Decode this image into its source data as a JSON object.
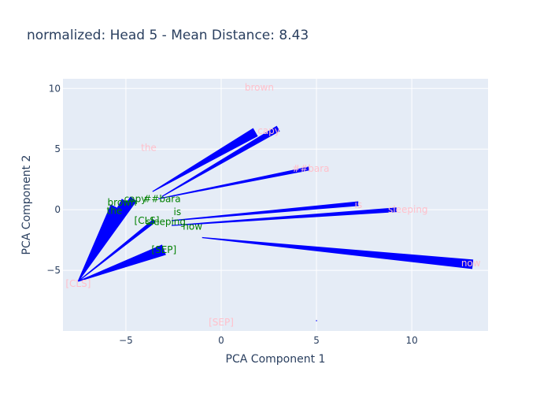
{
  "chart_data": {
    "type": "scatter",
    "title": "normalized: Head 5 - Mean Distance: 8.43",
    "xlabel": "PCA Component 1",
    "ylabel": "PCA Component 2",
    "xlim": [
      -8.3,
      14.0
    ],
    "ylim": [
      -10.0,
      10.8
    ],
    "xticks": [
      -5,
      0,
      5,
      10
    ],
    "yticks": [
      -5,
      0,
      5,
      10
    ],
    "grid": true,
    "colors": {
      "plot_bg": "#e5ecf6",
      "grid": "#ffffff",
      "arrow": "#0000ff",
      "label_a": "#ffc0cb",
      "label_b": "#008000"
    },
    "series": [
      {
        "color": "#ffc0cb",
        "points": [
          {
            "label": "[CLS]",
            "x": -7.5,
            "y": -6.1
          },
          {
            "label": "the",
            "x": -3.8,
            "y": 5.1
          },
          {
            "label": "brown",
            "x": 2.0,
            "y": 10.1
          },
          {
            "label": "capy",
            "x": 2.5,
            "y": 6.5
          },
          {
            "label": "##bara",
            "x": 4.7,
            "y": 3.4
          },
          {
            "label": "is",
            "x": 7.2,
            "y": 0.4
          },
          {
            "label": "sleeping",
            "x": 9.8,
            "y": 0.0
          },
          {
            "label": "now",
            "x": 13.1,
            "y": -4.4
          },
          {
            "label": "[SEP]",
            "x": 0.0,
            "y": -9.3
          }
        ]
      },
      {
        "color": "#008000",
        "points": [
          {
            "label": "the",
            "x": -5.6,
            "y": -0.1
          },
          {
            "label": "brown",
            "x": -5.2,
            "y": 0.6
          },
          {
            "label": "capy",
            "x": -4.5,
            "y": 0.9
          },
          {
            "label": "##bara",
            "x": -3.1,
            "y": 0.9
          },
          {
            "label": "is",
            "x": -2.3,
            "y": -0.2
          },
          {
            "label": "[CLS]",
            "x": -3.9,
            "y": -0.9
          },
          {
            "label": "sleeping",
            "x": -2.9,
            "y": -1.0
          },
          {
            "label": "now",
            "x": -1.5,
            "y": -1.4
          },
          {
            "label": "[SEP]",
            "x": -3.0,
            "y": -3.3
          }
        ]
      }
    ],
    "arrows": [
      {
        "from": [
          -7.5,
          -5.9
        ],
        "to": [
          -5.5,
          0.2
        ],
        "width": 16
      },
      {
        "from": [
          -7.5,
          -5.9
        ],
        "to": [
          -5.0,
          0.7
        ],
        "width": 12
      },
      {
        "from": [
          -7.5,
          -5.9
        ],
        "to": [
          -4.6,
          0.9
        ],
        "width": 10
      },
      {
        "from": [
          -7.5,
          -5.9
        ],
        "to": [
          -3.5,
          -0.9
        ],
        "width": 5
      },
      {
        "from": [
          -7.5,
          -5.9
        ],
        "to": [
          -3.0,
          -3.3
        ],
        "width": 14
      },
      {
        "from": [
          -3.6,
          1.5
        ],
        "to": [
          1.8,
          6.4
        ],
        "width": 12
      },
      {
        "from": [
          -3.1,
          1.1
        ],
        "to": [
          3.0,
          6.7
        ],
        "width": 8
      },
      {
        "from": [
          -3.3,
          0.9
        ],
        "to": [
          4.6,
          3.4
        ],
        "width": 5
      },
      {
        "from": [
          -2.6,
          -0.9
        ],
        "to": [
          7.2,
          0.5
        ],
        "width": 6
      },
      {
        "from": [
          -2.6,
          -1.3
        ],
        "to": [
          9.2,
          0.0
        ],
        "width": 6
      },
      {
        "from": [
          -1.0,
          -2.3
        ],
        "to": [
          13.2,
          -4.5
        ],
        "width": 12
      },
      {
        "from": [
          5.0,
          -9.1
        ],
        "to": [
          5.0,
          -9.2
        ],
        "width": 1
      }
    ]
  }
}
